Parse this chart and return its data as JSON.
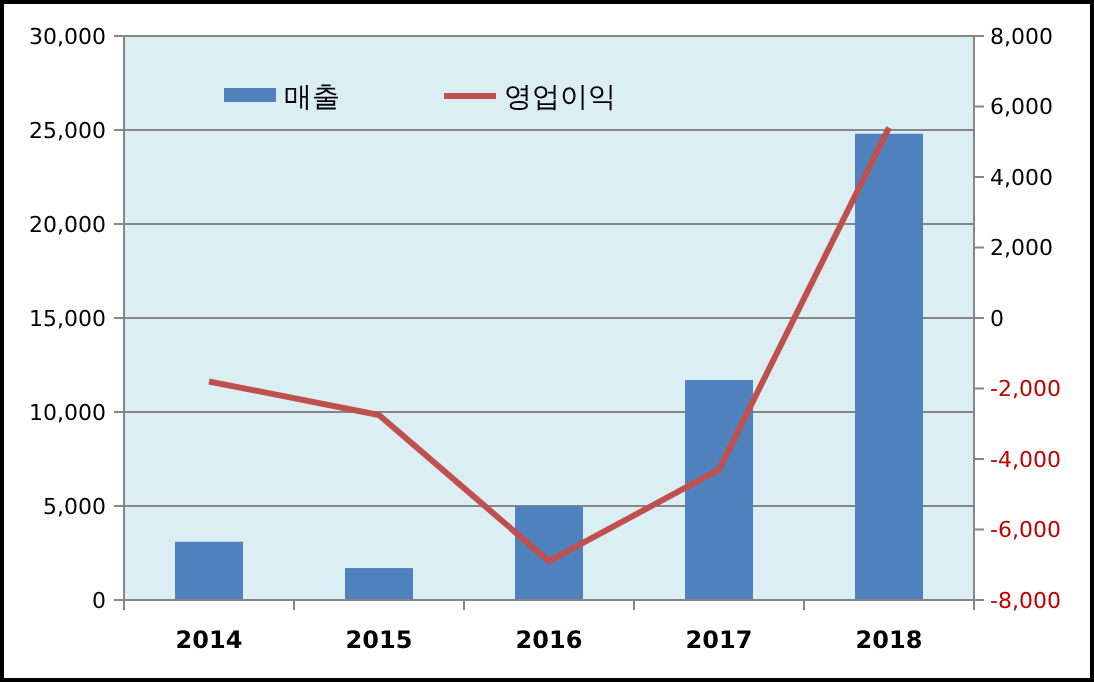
{
  "chart_data": {
    "type": "bar",
    "categories": [
      "2014",
      "2015",
      "2016",
      "2017",
      "2018"
    ],
    "series": [
      {
        "name": "매출",
        "color": "#4f81bd",
        "values": [
          3100,
          1700,
          5000,
          11700,
          24800
        ]
      },
      {
        "name": "영업이익",
        "type": "line",
        "axis": "y2",
        "color": "#c0504d",
        "values": [
          -1800,
          -2750,
          -6900,
          -4300,
          5400
        ]
      }
    ],
    "ylim": [
      0,
      30000
    ],
    "yticks": [
      0,
      {
        "value": 5000,
        "label": "5,000"
      },
      {
        "value": 10000,
        "label": "10,000"
      },
      {
        "value": 15000,
        "label": "15,000"
      },
      {
        "value": 20000,
        "label": "20,000"
      },
      {
        "value": 25000,
        "label": "25,000"
      },
      {
        "value": 30000,
        "label": "30,000"
      }
    ],
    "y2lim": [
      -8000,
      8000
    ],
    "y2ticks": [
      {
        "value": -8000,
        "label": "-8,000"
      },
      {
        "value": -6000,
        "label": "-6,000"
      },
      {
        "value": -4000,
        "label": "-4,000"
      },
      {
        "value": -2000,
        "label": "-2,000"
      },
      0,
      {
        "value": 2000,
        "label": "2,000"
      },
      {
        "value": 4000,
        "label": "4,000"
      },
      {
        "value": 6000,
        "label": "6,000"
      },
      {
        "value": 8000,
        "label": "8,000"
      }
    ],
    "grid": "y",
    "legend": "top left",
    "marker": "none",
    "line_style": "solid"
  }
}
